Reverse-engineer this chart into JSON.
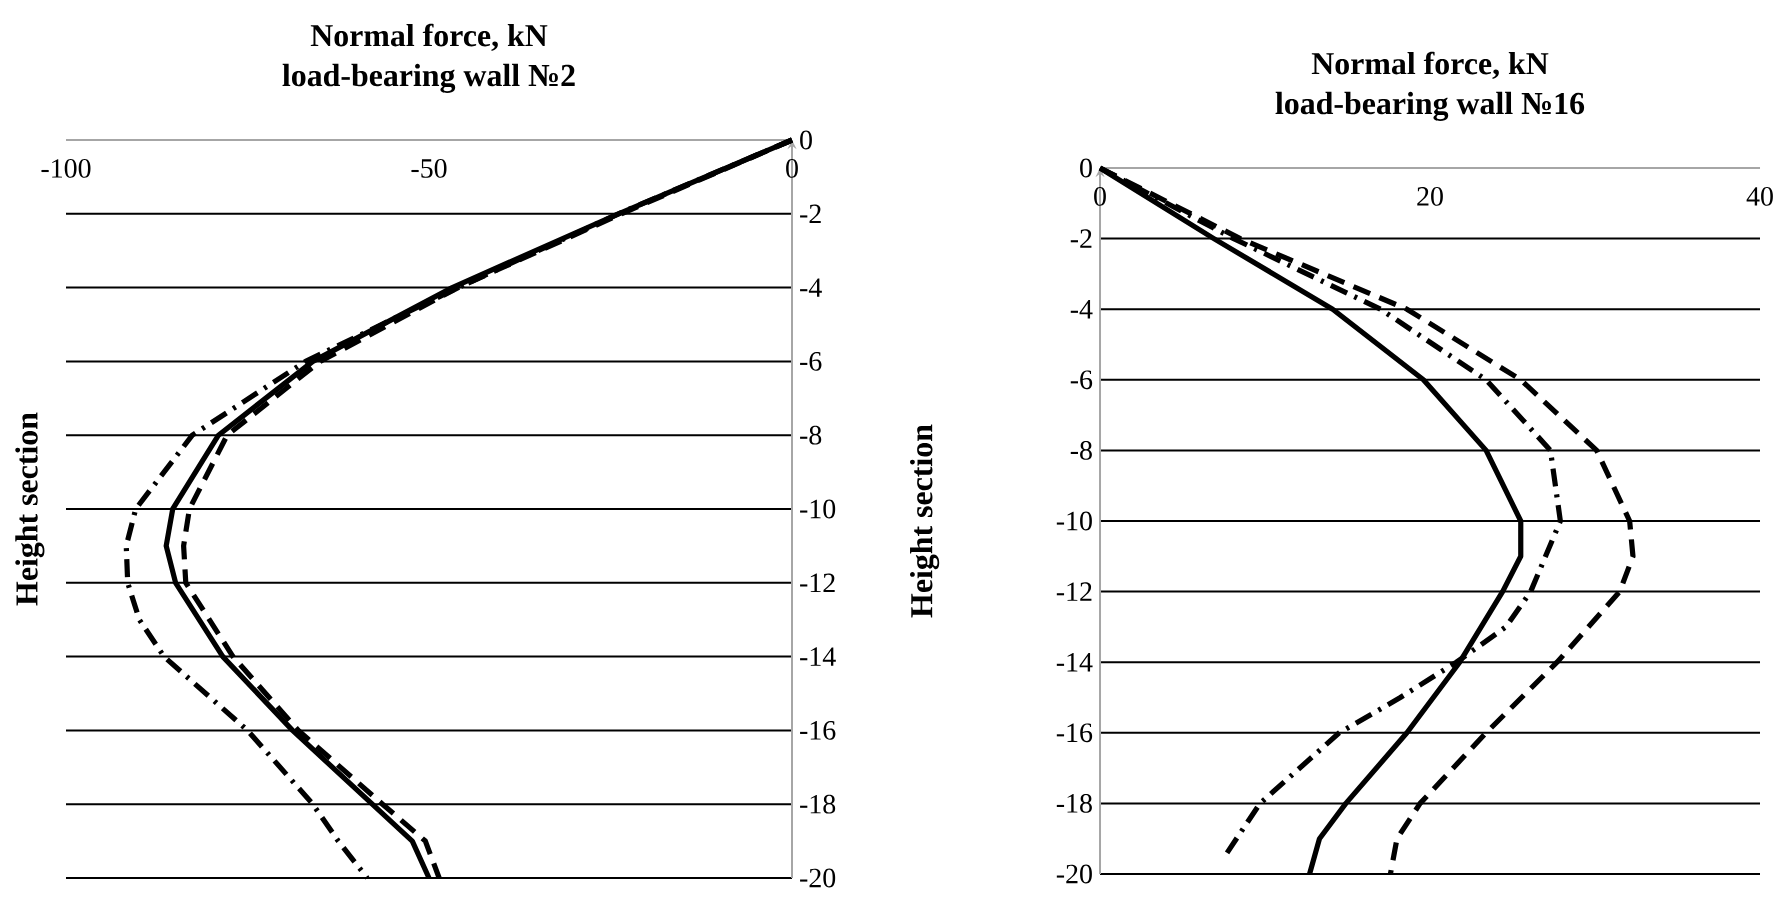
{
  "chart_data": [
    {
      "type": "line",
      "title": "Normal force, kN",
      "subtitle": "load-bearing wall №2",
      "ylabel": "Height section",
      "xlim": [
        -100,
        0
      ],
      "ylim": [
        -20,
        0
      ],
      "xticks": [
        -100,
        -50,
        0
      ],
      "yticks": [
        0,
        -2,
        -4,
        -6,
        -8,
        -10,
        -12,
        -14,
        -16,
        -18,
        -20
      ],
      "grid": "y",
      "series": [
        {
          "color": "#000000",
          "line_style": "solid",
          "x": [
            0,
            -23.9,
            -46.8,
            -66,
            -79,
            -85.3,
            -86.2,
            -84.9,
            -78.4,
            -68.8,
            -57.8,
            -52.3,
            -50
          ],
          "values": [
            0,
            -2,
            -4,
            -6,
            -8,
            -10,
            -11,
            -12,
            -14,
            -16,
            -18,
            -19,
            -20
          ]
        },
        {
          "color": "#000000",
          "line_style": "dashed",
          "x": [
            0,
            -23.5,
            -46,
            -65,
            -77.8,
            -83,
            -83.8,
            -83.5,
            -77,
            -68,
            -56.4,
            -50.5,
            -48.6
          ],
          "values": [
            0,
            -2,
            -4,
            -6,
            -8,
            -10,
            -11,
            -12,
            -14,
            -16,
            -18,
            -19,
            -20
          ]
        },
        {
          "color": "#000000",
          "line_style": "dashdot",
          "x": [
            0,
            -23.9,
            -46,
            -67,
            -82.6,
            -90.4,
            -91.7,
            -91.5,
            -89.9,
            -86.5,
            -75,
            -66,
            -62.5,
            -58.5
          ],
          "values": [
            0,
            -2,
            -4,
            -6,
            -8,
            -10,
            -11,
            -12,
            -13,
            -14,
            -16,
            -18,
            -19,
            -20
          ]
        }
      ]
    },
    {
      "type": "line",
      "title": "Normal force, kN",
      "subtitle": "load-bearing wall  №16",
      "ylabel": "Height section",
      "xlim": [
        0,
        40
      ],
      "ylim": [
        -20,
        0
      ],
      "xticks": [
        0,
        20,
        40
      ],
      "yticks": [
        0,
        -2,
        -4,
        -6,
        -8,
        -10,
        -12,
        -14,
        -16,
        -18,
        -20
      ],
      "grid": "y",
      "series": [
        {
          "color": "#000000",
          "line_style": "solid",
          "x": [
            0,
            6.9,
            14.1,
            19.6,
            23.4,
            25.5,
            25.5,
            24.4,
            21.8,
            18.6,
            14.9,
            13.3,
            12.7
          ],
          "values": [
            0,
            -2,
            -4,
            -6,
            -8,
            -10,
            -11,
            -12,
            -14,
            -16,
            -18,
            -19,
            -20
          ]
        },
        {
          "color": "#000000",
          "line_style": "dashdot",
          "x": [
            0,
            8.1,
            17,
            23.4,
            27.3,
            27.9,
            26.1,
            24.6,
            21.6,
            18.2,
            14.5,
            9.7,
            7.7
          ],
          "values": [
            0,
            -2,
            -4,
            -6,
            -8,
            -10,
            -12,
            -13,
            -14,
            -15,
            -16,
            -18,
            -19.4
          ]
        },
        {
          "color": "#000000",
          "line_style": "dashed",
          "x": [
            0,
            8.5,
            18.6,
            25.5,
            30.1,
            32.1,
            32.3,
            31.5,
            27.7,
            23.4,
            19.4,
            18,
            17.6
          ],
          "values": [
            0,
            -2,
            -4,
            -6,
            -8,
            -10,
            -11,
            -12,
            -14,
            -16,
            -18,
            -19,
            -20
          ]
        }
      ]
    }
  ]
}
